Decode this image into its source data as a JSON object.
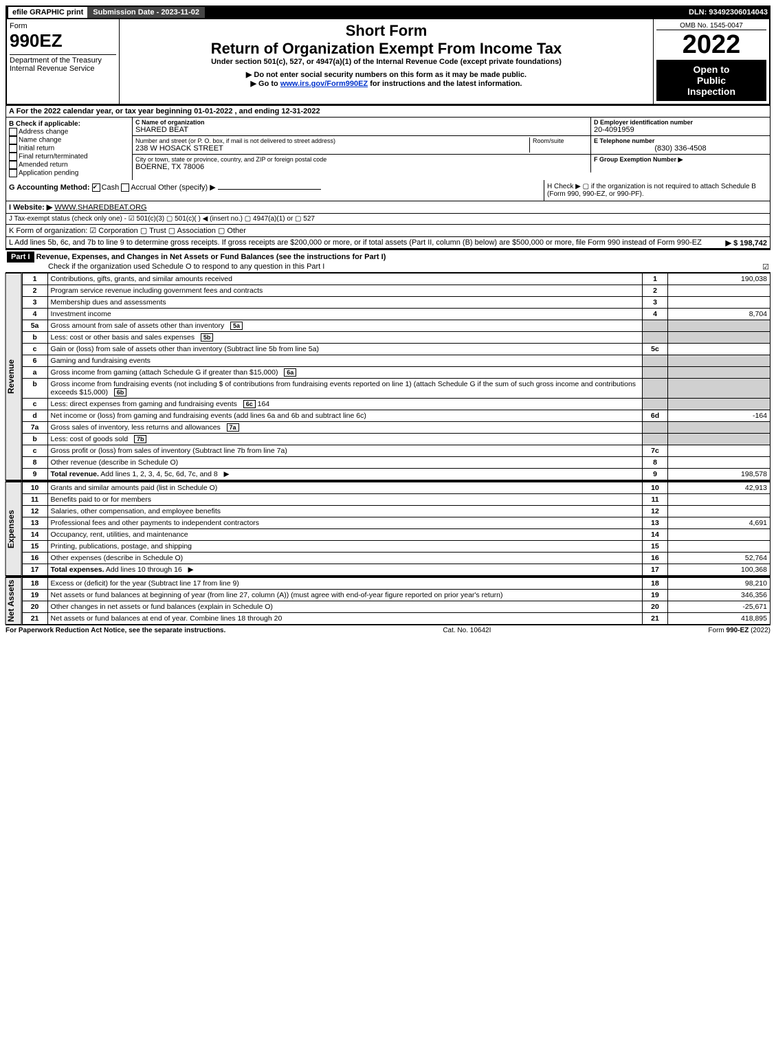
{
  "topbar": {
    "efile": "efile GRAPHIC print",
    "submission_label": "Submission Date - 2023-11-02",
    "dln": "DLN: 93492306014043"
  },
  "header": {
    "form_word": "Form",
    "form_number": "990EZ",
    "dept": "Department of the Treasury",
    "irs": "Internal Revenue Service",
    "short_form": "Short Form",
    "main_title": "Return of Organization Exempt From Income Tax",
    "subtitle": "Under section 501(c), 527, or 4947(a)(1) of the Internal Revenue Code (except private foundations)",
    "warning": "▶ Do not enter social security numbers on this form as it may be made public.",
    "goto_prefix": "▶ Go to ",
    "goto_link": "www.irs.gov/Form990EZ",
    "goto_suffix": " for instructions and the latest information.",
    "omb": "OMB No. 1545-0047",
    "year": "2022",
    "open1": "Open to",
    "open2": "Public",
    "open3": "Inspection"
  },
  "lineA": "A  For the 2022 calendar year, or tax year beginning 01-01-2022 , and ending 12-31-2022",
  "boxB": {
    "title": "B  Check if applicable:",
    "opts": [
      "Address change",
      "Name change",
      "Initial return",
      "Final return/terminated",
      "Amended return",
      "Application pending"
    ]
  },
  "boxC": {
    "label": "C Name of organization",
    "name": "SHARED BEAT",
    "addr_label": "Number and street (or P. O. box, if mail is not delivered to street address)",
    "room_label": "Room/suite",
    "addr": "238 W HOSACK STREET",
    "city_label": "City or town, state or province, country, and ZIP or foreign postal code",
    "city": "BOERNE, TX  78006"
  },
  "boxD": {
    "label": "D Employer identification number",
    "ein": "20-4091959",
    "phone_label": "E Telephone number",
    "phone": "(830) 336-4508",
    "group_label": "F Group Exemption Number  ▶"
  },
  "lineG": {
    "label": "G Accounting Method:",
    "cash": "Cash",
    "accrual": "Accrual",
    "other": "Other (specify) ▶"
  },
  "lineH": {
    "text": "H  Check ▶  ▢  if the organization is not required to attach Schedule B (Form 990, 990-EZ, or 990-PF)."
  },
  "lineI": {
    "label": "I Website: ▶",
    "value": "WWW.SHAREDBEAT.ORG"
  },
  "lineJ": "J Tax-exempt status (check only one) - ☑ 501(c)(3)  ▢ 501(c)(  ) ◀ (insert no.)  ▢ 4947(a)(1) or  ▢ 527",
  "lineK": "K Form of organization:  ☑ Corporation   ▢ Trust   ▢ Association   ▢ Other",
  "lineL": {
    "text": "L Add lines 5b, 6c, and 7b to line 9 to determine gross receipts. If gross receipts are $200,000 or more, or if total assets (Part II, column (B) below) are $500,000 or more, file Form 990 instead of Form 990-EZ",
    "amount": "▶ $ 198,742"
  },
  "part1": {
    "label": "Part I",
    "title": "Revenue, Expenses, and Changes in Net Assets or Fund Balances (see the instructions for Part I)",
    "sub": "Check if the organization used Schedule O to respond to any question in this Part I",
    "sub_checked": "☑"
  },
  "sections": {
    "revenue": "Revenue",
    "expenses": "Expenses",
    "netassets": "Net Assets"
  },
  "lines": [
    {
      "n": "1",
      "desc": "Contributions, gifts, grants, and similar amounts received",
      "ref": "1",
      "amt": "190,038"
    },
    {
      "n": "2",
      "desc": "Program service revenue including government fees and contracts",
      "ref": "2",
      "amt": ""
    },
    {
      "n": "3",
      "desc": "Membership dues and assessments",
      "ref": "3",
      "amt": ""
    },
    {
      "n": "4",
      "desc": "Investment income",
      "ref": "4",
      "amt": "8,704"
    },
    {
      "n": "5a",
      "desc": "Gross amount from sale of assets other than inventory",
      "box": "5a",
      "boxval": "",
      "ref": "",
      "amt": "",
      "grey": true
    },
    {
      "n": "b",
      "desc": "Less: cost or other basis and sales expenses",
      "box": "5b",
      "boxval": "",
      "ref": "",
      "amt": "",
      "grey": true
    },
    {
      "n": "c",
      "desc": "Gain or (loss) from sale of assets other than inventory (Subtract line 5b from line 5a)",
      "ref": "5c",
      "amt": ""
    },
    {
      "n": "6",
      "desc": "Gaming and fundraising events",
      "ref": "",
      "amt": "",
      "grey": true
    },
    {
      "n": "a",
      "desc": "Gross income from gaming (attach Schedule G if greater than $15,000)",
      "box": "6a",
      "boxval": "",
      "ref": "",
      "amt": "",
      "grey": true
    },
    {
      "n": "b",
      "desc": "Gross income from fundraising events (not including $                    of contributions from fundraising events reported on line 1) (attach Schedule G if the sum of such gross income and contributions exceeds $15,000)",
      "box": "6b",
      "boxval": "",
      "ref": "",
      "amt": "",
      "grey": true
    },
    {
      "n": "c",
      "desc": "Less: direct expenses from gaming and fundraising events",
      "box": "6c",
      "boxval": "164",
      "ref": "",
      "amt": "",
      "grey": true
    },
    {
      "n": "d",
      "desc": "Net income or (loss) from gaming and fundraising events (add lines 6a and 6b and subtract line 6c)",
      "ref": "6d",
      "amt": "-164"
    },
    {
      "n": "7a",
      "desc": "Gross sales of inventory, less returns and allowances",
      "box": "7a",
      "boxval": "",
      "ref": "",
      "amt": "",
      "grey": true
    },
    {
      "n": "b",
      "desc": "Less: cost of goods sold",
      "box": "7b",
      "boxval": "",
      "ref": "",
      "amt": "",
      "grey": true
    },
    {
      "n": "c",
      "desc": "Gross profit or (loss) from sales of inventory (Subtract line 7b from line 7a)",
      "ref": "7c",
      "amt": ""
    },
    {
      "n": "8",
      "desc": "Other revenue (describe in Schedule O)",
      "ref": "8",
      "amt": ""
    },
    {
      "n": "9",
      "desc": "Total revenue. Add lines 1, 2, 3, 4, 5c, 6d, 7c, and 8",
      "arrow": "▶",
      "ref": "9",
      "amt": "198,578",
      "bold": true
    }
  ],
  "expense_lines": [
    {
      "n": "10",
      "desc": "Grants and similar amounts paid (list in Schedule O)",
      "ref": "10",
      "amt": "42,913"
    },
    {
      "n": "11",
      "desc": "Benefits paid to or for members",
      "ref": "11",
      "amt": ""
    },
    {
      "n": "12",
      "desc": "Salaries, other compensation, and employee benefits",
      "ref": "12",
      "amt": ""
    },
    {
      "n": "13",
      "desc": "Professional fees and other payments to independent contractors",
      "ref": "13",
      "amt": "4,691"
    },
    {
      "n": "14",
      "desc": "Occupancy, rent, utilities, and maintenance",
      "ref": "14",
      "amt": ""
    },
    {
      "n": "15",
      "desc": "Printing, publications, postage, and shipping",
      "ref": "15",
      "amt": ""
    },
    {
      "n": "16",
      "desc": "Other expenses (describe in Schedule O)",
      "ref": "16",
      "amt": "52,764"
    },
    {
      "n": "17",
      "desc": "Total expenses. Add lines 10 through 16",
      "arrow": "▶",
      "ref": "17",
      "amt": "100,368",
      "bold": true
    }
  ],
  "net_lines": [
    {
      "n": "18",
      "desc": "Excess or (deficit) for the year (Subtract line 17 from line 9)",
      "ref": "18",
      "amt": "98,210"
    },
    {
      "n": "19",
      "desc": "Net assets or fund balances at beginning of year (from line 27, column (A)) (must agree with end-of-year figure reported on prior year's return)",
      "ref": "19",
      "amt": "346,356"
    },
    {
      "n": "20",
      "desc": "Other changes in net assets or fund balances (explain in Schedule O)",
      "ref": "20",
      "amt": "-25,671"
    },
    {
      "n": "21",
      "desc": "Net assets or fund balances at end of year. Combine lines 18 through 20",
      "ref": "21",
      "amt": "418,895"
    }
  ],
  "footer": {
    "left": "For Paperwork Reduction Act Notice, see the separate instructions.",
    "center": "Cat. No. 10642I",
    "right": "Form 990-EZ (2022)"
  }
}
